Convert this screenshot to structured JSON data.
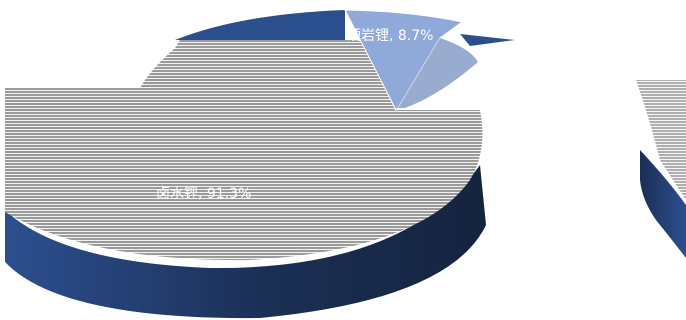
{
  "chart_data": {
    "type": "pie",
    "title": "",
    "slices": [
      {
        "name": "卤水锂",
        "value": 91.3,
        "label": "卤水锂, 91.3%",
        "color": "#2b4f8c"
      },
      {
        "name": "硬岩锂",
        "value": 8.7,
        "label": "硬岩锂, 8.7%",
        "color": "#8fa9d8"
      }
    ],
    "legend": "none",
    "style": "3d-exploded"
  }
}
